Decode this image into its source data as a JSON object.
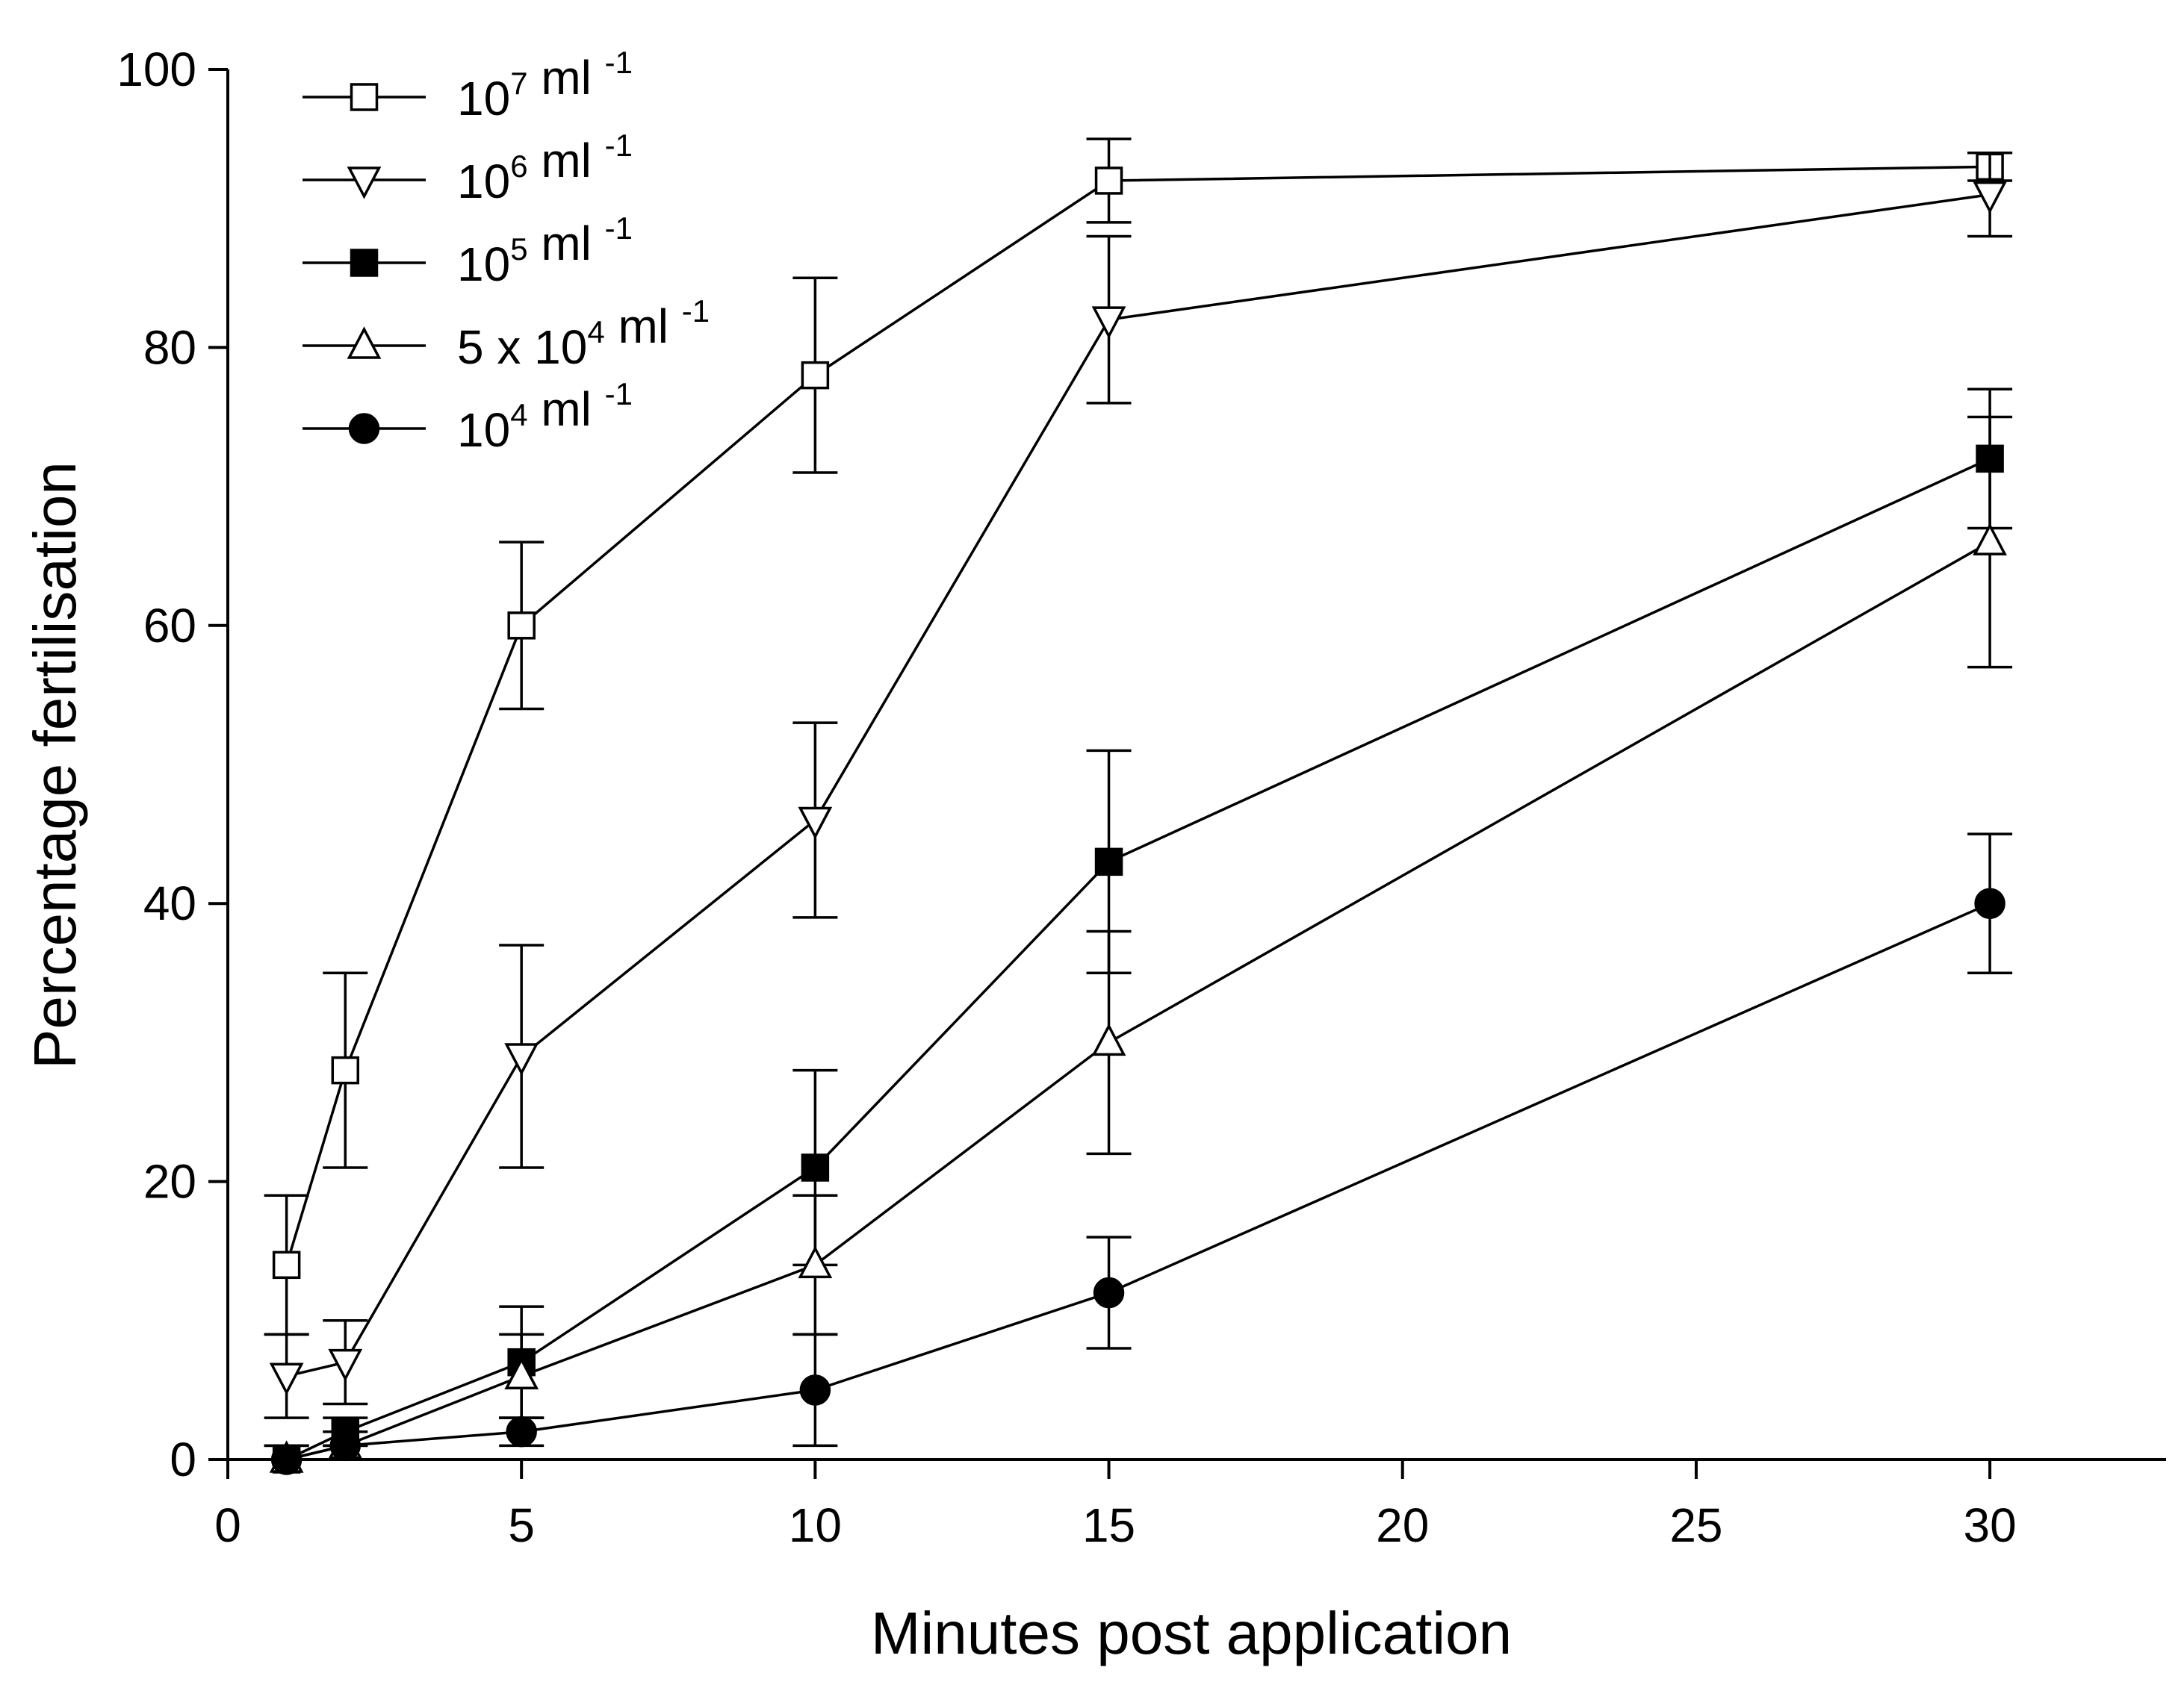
{
  "chart_data": {
    "type": "line",
    "xlabel": "Minutes post application",
    "ylabel": "Percentage fertilisation",
    "xlim": [
      0,
      33
    ],
    "ylim": [
      0,
      100
    ],
    "x_ticks": [
      0,
      5,
      10,
      15,
      20,
      25,
      30
    ],
    "y_ticks": [
      0,
      20,
      40,
      60,
      80,
      100
    ],
    "x_tick_labels": [
      "0",
      "5",
      "10",
      "15",
      "20",
      "25",
      "30"
    ],
    "y_tick_labels": [
      "0",
      "20",
      "40",
      "60",
      "80",
      "100"
    ],
    "grid": false,
    "legend_position": "top-left",
    "x": [
      1,
      2,
      5,
      10,
      15,
      30
    ],
    "series": [
      {
        "name": "10^7 ml^-1",
        "label_base": "10",
        "label_exp": "7",
        "label_unit": " ml ",
        "label_unit_exp": "-1",
        "marker": "square",
        "filled": false,
        "values": [
          14,
          28,
          60,
          78,
          92,
          93
        ],
        "err_upper": [
          19,
          35,
          66,
          85,
          95,
          94
        ],
        "err_lower": [
          9,
          21,
          54,
          71,
          89,
          92
        ]
      },
      {
        "name": "10^6 ml^-1",
        "label_base": "10",
        "label_exp": "6",
        "label_unit": " ml ",
        "label_unit_exp": "-1",
        "marker": "triangle-down",
        "filled": false,
        "values": [
          6,
          7,
          29,
          46,
          82,
          91
        ],
        "err_upper": [
          9,
          10,
          37,
          53,
          88,
          94
        ],
        "err_lower": [
          3,
          4,
          21,
          39,
          76,
          88
        ]
      },
      {
        "name": "10^5 ml^-1",
        "label_base": "10",
        "label_exp": "5",
        "label_unit": " ml ",
        "label_unit_exp": "-1",
        "marker": "square",
        "filled": true,
        "values": [
          0,
          2,
          7,
          21,
          43,
          72
        ],
        "err_upper": [
          1,
          3,
          11,
          28,
          51,
          77
        ],
        "err_lower": [
          0,
          1,
          3,
          14,
          35,
          67
        ]
      },
      {
        "name": "5 x 10^4 ml^-1",
        "label_base": "5 x 10",
        "label_exp": "4",
        "label_unit": " ml ",
        "label_unit_exp": "-1",
        "marker": "triangle-up",
        "filled": false,
        "values": [
          0,
          1,
          6,
          14,
          30,
          66
        ],
        "err_upper": [
          1,
          2,
          9,
          19,
          38,
          75
        ],
        "err_lower": [
          0,
          0,
          3,
          9,
          22,
          57
        ]
      },
      {
        "name": "10^4 ml^-1",
        "label_base": "10",
        "label_exp": "4",
        "label_unit": " ml ",
        "label_unit_exp": "-1",
        "marker": "circle",
        "filled": true,
        "values": [
          0,
          1,
          2,
          5,
          12,
          40
        ],
        "err_upper": [
          0,
          1,
          3,
          9,
          16,
          45
        ],
        "err_lower": [
          0,
          0,
          1,
          1,
          8,
          35
        ]
      }
    ]
  },
  "colors": {
    "ink": "#000000",
    "background": "#ffffff"
  }
}
